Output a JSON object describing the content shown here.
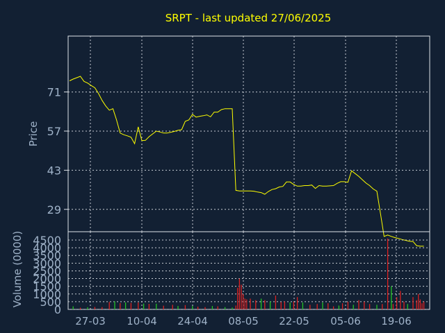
{
  "colors": {
    "background": "#122033",
    "axis": "#dfe4ea",
    "grid": "#c8cdd4",
    "text": "#9fb2c8",
    "title": "#ffff00",
    "price_line": "#ffff00",
    "volume_up": "#22c422",
    "volume_down": "#dd2020"
  },
  "chart_data": [
    {
      "type": "line",
      "title": "SRPT - last updated 27/06/2025",
      "ylabel": "Price",
      "ylim": [
        21,
        91
      ],
      "yticks": [
        29,
        43,
        57,
        71
      ],
      "xticks": [
        "27-03",
        "10-04",
        "24-04",
        "08-05",
        "22-05",
        "05-06",
        "19-06"
      ],
      "grid": true,
      "series": [
        {
          "x": [
            0,
            2,
            4,
            6,
            8,
            10,
            12,
            14,
            16,
            18,
            20,
            22,
            24,
            26,
            28,
            30,
            32,
            34,
            36,
            38,
            40,
            42,
            44,
            46,
            48,
            50,
            52,
            54,
            56,
            58,
            60,
            62,
            64,
            66,
            68,
            70,
            72,
            74,
            76,
            78,
            80,
            82,
            84,
            86,
            88,
            90,
            92,
            94,
            96,
            98,
            100,
            102,
            104,
            106,
            108,
            110,
            112,
            114,
            116,
            118,
            120,
            122,
            124,
            126,
            128,
            130,
            132,
            134,
            136,
            138,
            140,
            142,
            144,
            146,
            148,
            150,
            152,
            154,
            156,
            158,
            160,
            162,
            164,
            166,
            168,
            170,
            172,
            174,
            176,
            178,
            180,
            182,
            184,
            186,
            188,
            190,
            192,
            194,
            196
          ],
          "values": [
            75.0,
            75.6,
            76.1,
            76.6,
            74.8,
            74.2,
            73.3,
            72.5,
            70.5,
            68.0,
            66.0,
            64.5,
            65.0,
            61.0,
            56.3,
            55.7,
            55.3,
            54.8,
            52.5,
            58.5,
            53.6,
            53.7,
            55.0,
            56.0,
            57.0,
            56.7,
            56.3,
            56.3,
            56.6,
            56.9,
            57.3,
            57.5,
            60.5,
            61.0,
            63.0,
            62.0,
            62.3,
            62.5,
            62.8,
            62.1,
            63.8,
            63.8,
            64.7,
            65.0,
            65.0,
            65.0,
            35.8,
            35.6,
            35.6,
            35.6,
            35.6,
            35.5,
            35.2,
            35.0,
            34.4,
            35.4,
            36.1,
            36.4,
            37.0,
            37.2,
            38.8,
            38.8,
            37.9,
            37.3,
            37.3,
            37.5,
            37.5,
            37.7,
            36.5,
            37.5,
            37.3,
            37.3,
            37.4,
            37.5,
            38.3,
            38.9,
            38.9,
            38.7,
            42.8,
            41.8,
            40.8,
            39.6,
            38.4,
            37.5,
            36.3,
            35.5,
            27.5,
            19.3,
            19.8,
            19.3,
            18.9,
            18.6,
            18.2,
            17.9,
            17.6,
            17.5,
            16.0,
            15.8,
            15.8
          ]
        }
      ]
    },
    {
      "type": "bar",
      "ylabel": "Volume (0000)",
      "ylim": [
        0,
        4500
      ],
      "yticks": [
        0,
        500,
        1000,
        1500,
        2000,
        2500,
        3000,
        3500,
        4000,
        4500
      ],
      "grid": true,
      "series": [
        {
          "x": [
            2,
            6,
            10,
            14,
            18,
            22,
            25,
            28,
            31,
            34,
            38,
            41,
            44,
            48,
            52,
            57,
            60,
            64,
            68,
            71,
            75,
            79,
            82,
            86,
            90,
            92,
            93,
            94,
            95,
            96,
            97,
            98,
            100,
            103,
            106,
            108,
            111,
            114,
            117,
            119,
            122,
            124,
            126,
            129,
            133,
            137,
            140,
            143,
            146,
            149,
            151,
            154,
            157,
            160,
            163,
            166,
            170,
            173,
            176,
            178,
            179,
            181,
            183,
            185,
            187,
            190,
            192,
            193,
            194,
            195,
            196
          ],
          "values": [
            200,
            110,
            140,
            160,
            150,
            480,
            520,
            410,
            450,
            420,
            450,
            380,
            360,
            370,
            240,
            300,
            220,
            280,
            220,
            180,
            150,
            220,
            200,
            150,
            120,
            250,
            1400,
            2000,
            1600,
            1000,
            700,
            650,
            700,
            600,
            700,
            600,
            520,
            900,
            480,
            520,
            450,
            500,
            800,
            450,
            300,
            350,
            450,
            400,
            200,
            250,
            400,
            500,
            300,
            600,
            500,
            350,
            300,
            350,
            4600,
            1500,
            350,
            800,
            1200,
            500,
            350,
            800,
            600,
            1000,
            650,
            400,
            500
          ],
          "up": [
            true,
            false,
            true,
            false,
            false,
            false,
            true,
            false,
            true,
            false,
            false,
            true,
            false,
            true,
            false,
            false,
            true,
            false,
            true,
            false,
            false,
            true,
            false,
            true,
            true,
            false,
            false,
            false,
            false,
            false,
            false,
            false,
            false,
            false,
            true,
            false,
            true,
            false,
            false,
            false,
            true,
            false,
            false,
            true,
            false,
            false,
            true,
            false,
            false,
            true,
            false,
            false,
            true,
            false,
            false,
            false,
            true,
            false,
            false,
            true,
            false,
            false,
            false,
            false,
            true,
            false,
            false,
            false,
            false,
            false,
            false
          ]
        }
      ]
    }
  ]
}
